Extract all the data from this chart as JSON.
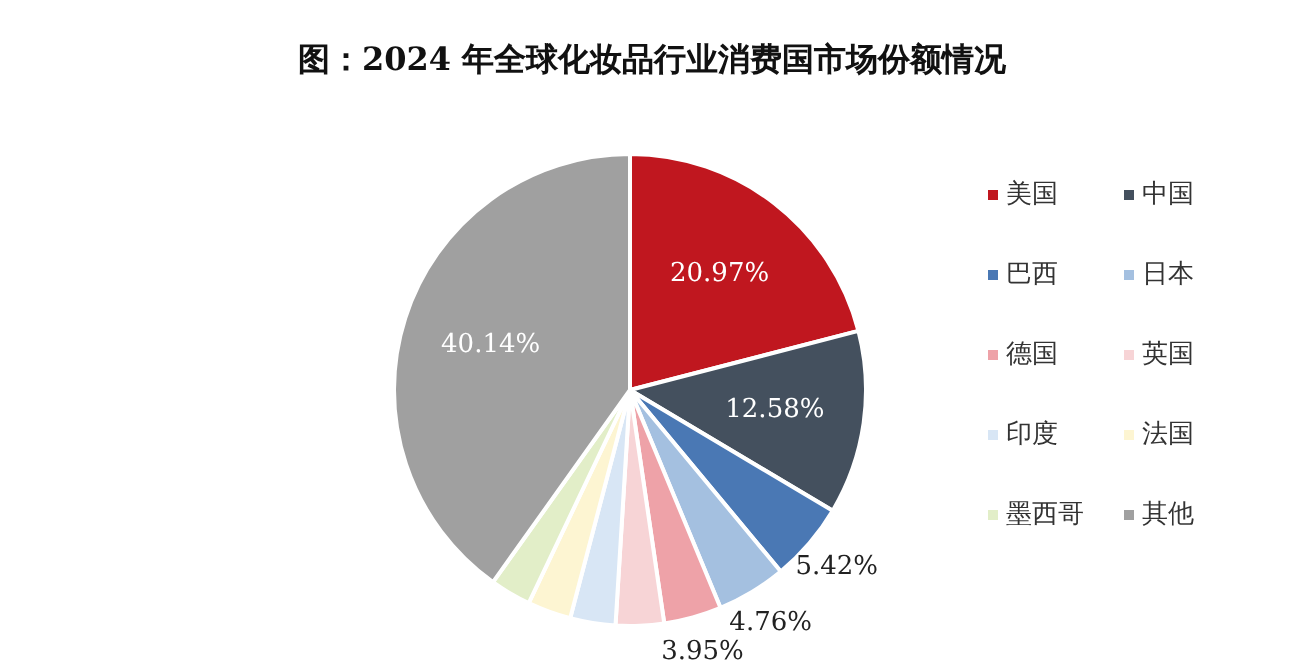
{
  "chart_data": {
    "type": "pie",
    "title": "图：2024 年全球化妆品行业消费国市场份额情况",
    "categories": [
      "美国",
      "中国",
      "巴西",
      "日本",
      "德国",
      "英国",
      "印度",
      "法国",
      "墨西哥",
      "其他"
    ],
    "values": [
      20.97,
      12.58,
      5.42,
      4.76,
      3.95,
      3.3,
      3.1,
      2.98,
      2.8,
      40.14
    ],
    "value_labels": [
      "20.97%",
      "12.58%",
      "5.42%",
      "4.76%",
      "3.95%",
      null,
      null,
      null,
      null,
      "40.14%"
    ],
    "colors": [
      "#c0171f",
      "#44505e",
      "#4a78b4",
      "#a4c0e0",
      "#eea2a8",
      "#f7d4d6",
      "#d8e6f5",
      "#fdf5d2",
      "#e2eec8",
      "#a0a0a0"
    ],
    "legend": "right"
  }
}
